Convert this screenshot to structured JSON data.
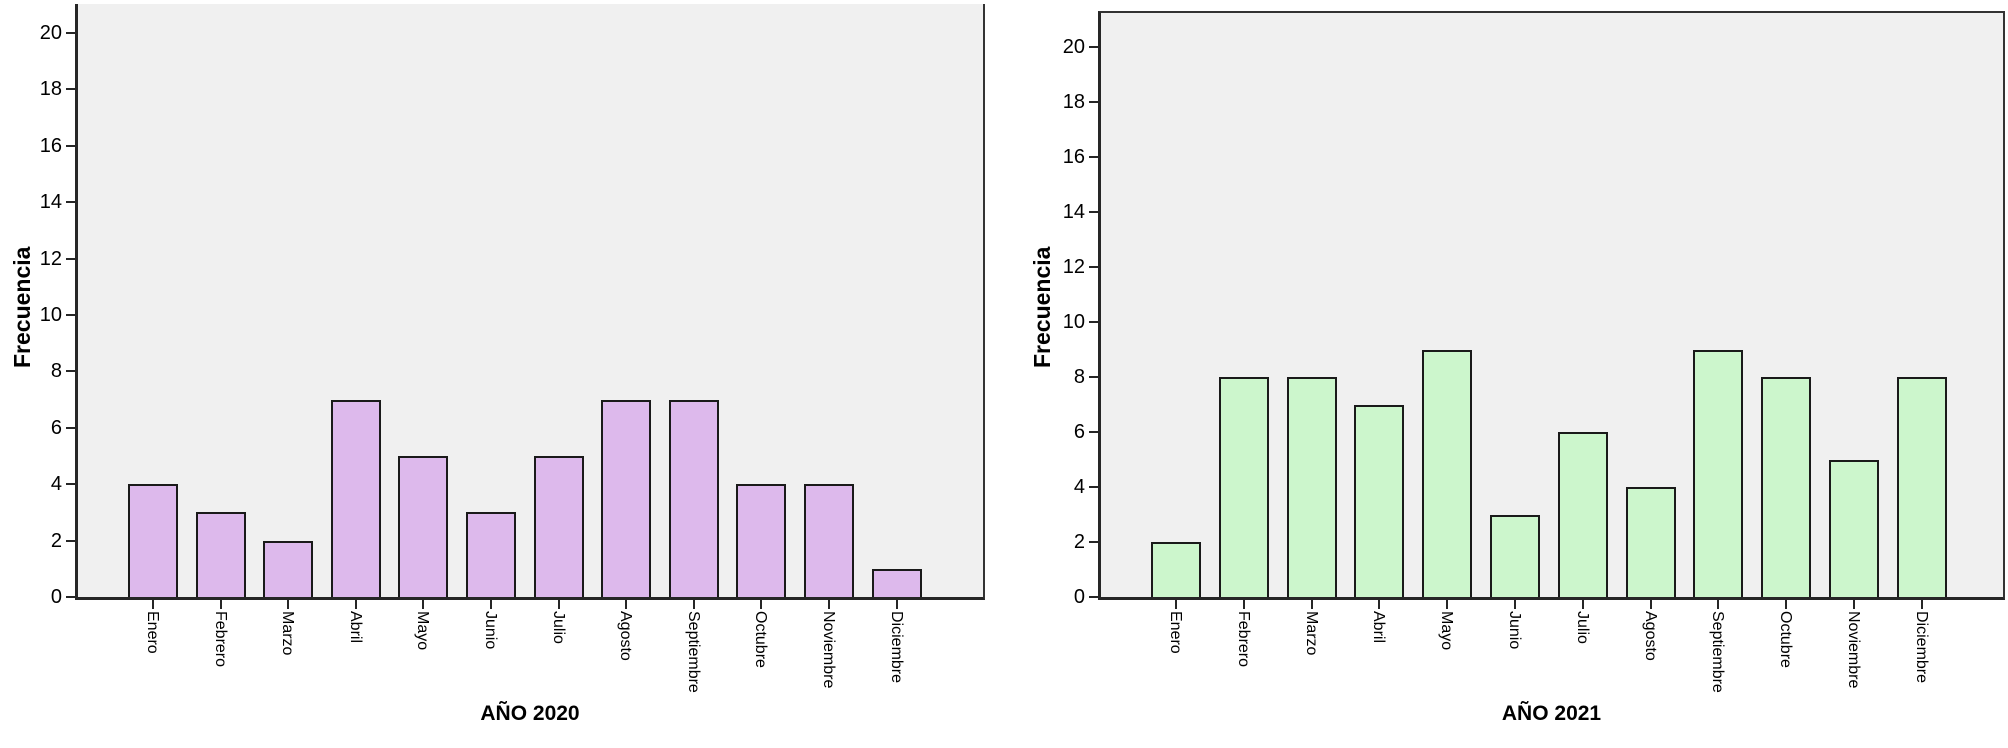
{
  "figure": {
    "colors": {
      "background": "#ffffff",
      "plot_background": "#f0f0f0",
      "axis": "#262626",
      "bar_border": "#1a1a1a",
      "text": "#000000"
    }
  },
  "chart_data": [
    {
      "type": "bar",
      "title": "AÑO 2020",
      "xlabel": "AÑO 2020",
      "ylabel": "Frecuencia",
      "categories": [
        "Enero",
        "Febrero",
        "Marzo",
        "Abril",
        "Mayo",
        "Junio",
        "Julio",
        "Agosto",
        "Septiembre",
        "Octubre",
        "Noviembre",
        "Diciembre"
      ],
      "values": [
        4,
        3,
        2,
        7,
        5,
        3,
        5,
        7,
        7,
        4,
        4,
        1
      ],
      "bar_color": "#ddb9ec",
      "ylim": [
        0,
        20
      ],
      "yticks": [
        0,
        2,
        4,
        6,
        8,
        10,
        12,
        14,
        16,
        18,
        20
      ],
      "grid": false,
      "legend": false
    },
    {
      "type": "bar",
      "title": "AÑO 2021",
      "xlabel": "AÑO 2021",
      "ylabel": "Frecuencia",
      "categories": [
        "Enero",
        "Febrero",
        "Marzo",
        "Abril",
        "Mayo",
        "Junio",
        "Julio",
        "Agosto",
        "Septiembre",
        "Octubre",
        "Noviembre",
        "Diciembre"
      ],
      "values": [
        2,
        8,
        8,
        7,
        9,
        3,
        6,
        4,
        9,
        8,
        5,
        8
      ],
      "bar_color": "#ccf6cc",
      "ylim": [
        0,
        20
      ],
      "yticks": [
        0,
        2,
        4,
        6,
        8,
        10,
        12,
        14,
        16,
        18,
        20
      ],
      "grid": false,
      "legend": false
    }
  ]
}
